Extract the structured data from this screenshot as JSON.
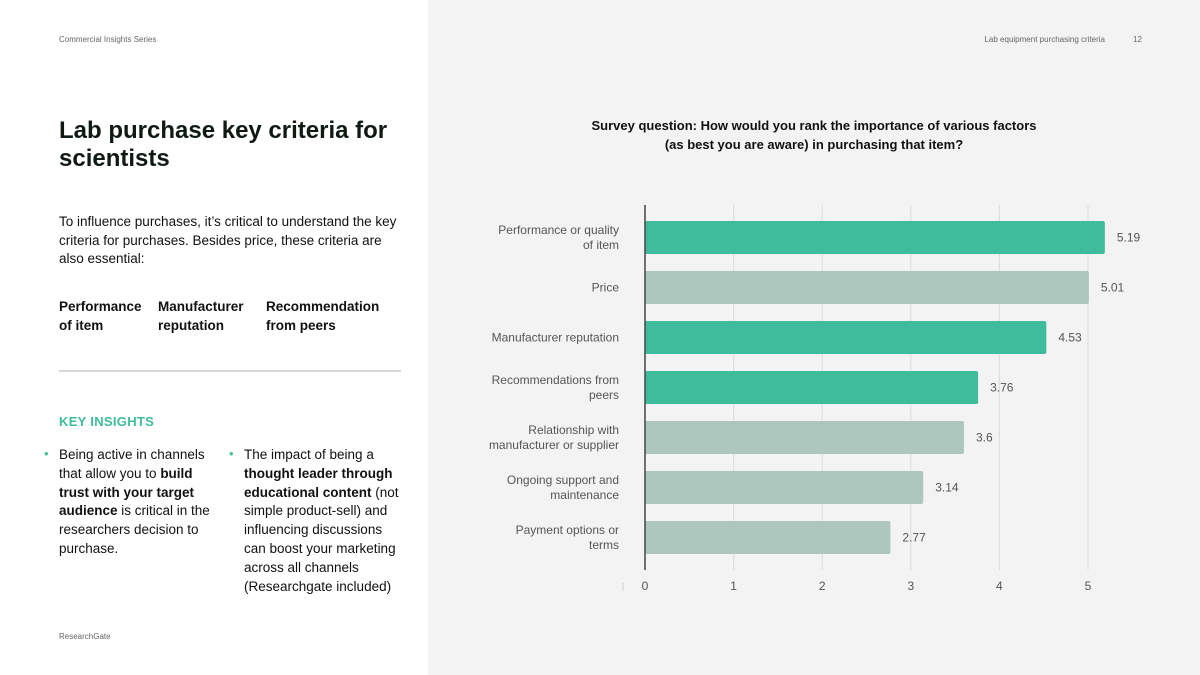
{
  "header": {
    "series": "Commercial Insights Series",
    "section": "Lab equipment purchasing criteria",
    "page_number": "12"
  },
  "title": "Lab purchase key criteria for scientists",
  "intro": "To influence purchases, it’s critical to understand the key criteria for purchases. Besides price, these criteria are also essential:",
  "criteria": [
    "Performance of item",
    "Manufacturer reputation",
    "Recommendation from peers"
  ],
  "key_insights": {
    "heading": "KEY INSIGHTS",
    "items": [
      {
        "parts": [
          {
            "text": "Being active in channels that allow you to ",
            "bold": false
          },
          {
            "text": "build trust with your target audience",
            "bold": true
          },
          {
            "text": " is critical in the researchers decision to purchase.",
            "bold": false
          }
        ]
      },
      {
        "parts": [
          {
            "text": "The impact of being a ",
            "bold": false
          },
          {
            "text": "thought leader through educational content",
            "bold": true
          },
          {
            "text": " (not simple product-sell) and influencing discussions can boost your marketing across all channels (Researchgate included)",
            "bold": false
          }
        ]
      }
    ]
  },
  "source": "ResearchGate",
  "survey_question": {
    "line1": "Survey question: How would you rank the importance of various factors",
    "line2": "(as best you are aware) in purchasing that item?"
  },
  "colors": {
    "highlight": "#3fbc9b",
    "muted": "#adc6be",
    "accent_text": "#3fbc9b"
  },
  "chart_data": {
    "type": "bar",
    "orientation": "horizontal",
    "title": "",
    "xlabel": "",
    "ylabel": "",
    "xlim": [
      0,
      5.2
    ],
    "x_ticks": [
      "0",
      "1",
      "2",
      "3",
      "4",
      "5"
    ],
    "grid": true,
    "categories": [
      [
        "Performance or quality",
        "of item"
      ],
      [
        "Price"
      ],
      [
        "Manufacturer reputation"
      ],
      [
        "Recommendations from",
        "peers"
      ],
      [
        "Relationship with",
        "manufacturer or supplier"
      ],
      [
        "Ongoing support and",
        "maintenance"
      ],
      [
        "Payment options or",
        "terms"
      ]
    ],
    "values": [
      5.19,
      5.01,
      4.53,
      3.76,
      3.6,
      3.14,
      2.77
    ],
    "value_labels": [
      "5.19",
      "5.01",
      "4.53",
      "3.76",
      "3.6",
      "3.14",
      "2.77"
    ],
    "highlighted": [
      true,
      false,
      true,
      true,
      false,
      false,
      false
    ]
  }
}
